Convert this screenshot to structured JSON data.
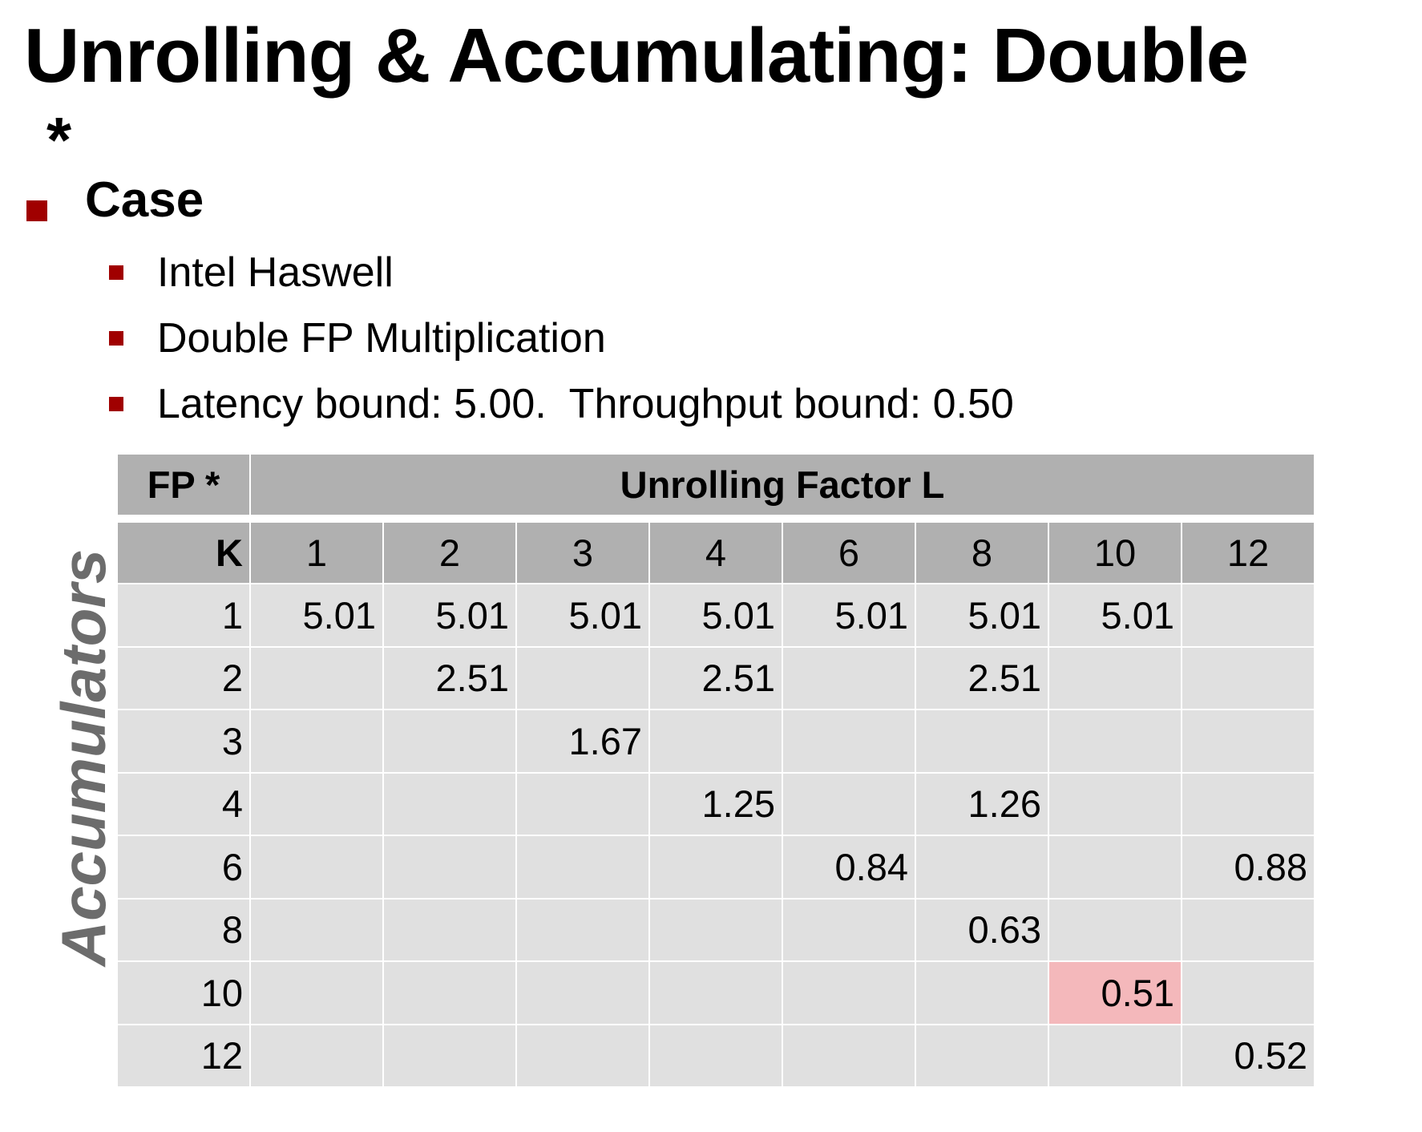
{
  "title": "Unrolling & Accumulating: Double",
  "title_suffix": "*",
  "case_label": "Case",
  "bullets": [
    "Intel Haswell",
    "Double FP Multiplication",
    "Latency bound: 5.00.  Throughput bound: 0.50"
  ],
  "side_label": "Accumulators",
  "table": {
    "corner": "FP *",
    "header": "Unrolling Factor L",
    "k_label": "K",
    "columns": [
      "1",
      "2",
      "3",
      "4",
      "6",
      "8",
      "10",
      "12"
    ],
    "rows": [
      {
        "k": "1",
        "cells": [
          "5.01",
          "5.01",
          "5.01",
          "5.01",
          "5.01",
          "5.01",
          "5.01",
          ""
        ]
      },
      {
        "k": "2",
        "cells": [
          "",
          "2.51",
          "",
          "2.51",
          "",
          "2.51",
          "",
          ""
        ]
      },
      {
        "k": "3",
        "cells": [
          "",
          "",
          "1.67",
          "",
          "",
          "",
          "",
          ""
        ]
      },
      {
        "k": "4",
        "cells": [
          "",
          "",
          "",
          "1.25",
          "",
          "1.26",
          "",
          ""
        ]
      },
      {
        "k": "6",
        "cells": [
          "",
          "",
          "",
          "",
          "0.84",
          "",
          "",
          "0.88"
        ]
      },
      {
        "k": "8",
        "cells": [
          "",
          "",
          "",
          "",
          "",
          "0.63",
          "",
          ""
        ]
      },
      {
        "k": "10",
        "cells": [
          "",
          "",
          "",
          "",
          "",
          "",
          "0.51",
          ""
        ]
      },
      {
        "k": "12",
        "cells": [
          "",
          "",
          "",
          "",
          "",
          "",
          "",
          "0.52"
        ]
      }
    ],
    "highlight": {
      "row": 6,
      "col": 6,
      "color": "#f4b8bb"
    }
  },
  "colors": {
    "bullet": "#a00000",
    "header_bg": "#b0b0b0",
    "cell_bg": "#e0e0e0",
    "side_label": "#6c6c6c"
  }
}
